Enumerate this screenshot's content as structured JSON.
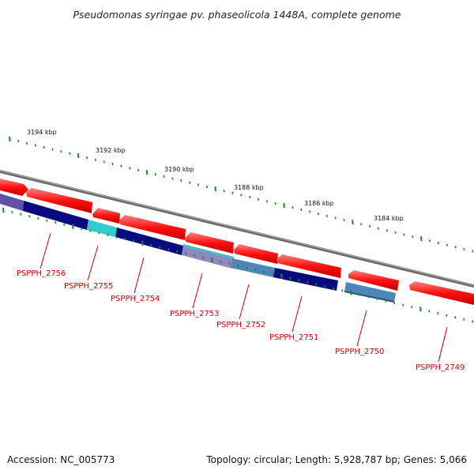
{
  "title": "Pseudomonas syringae pv. phaseolicola 1448A, complete genome",
  "footer": {
    "accession": "Accession: NC_005773",
    "summary": "Topology: circular; Length: 5,928,787 bp; Genes: 5,066"
  },
  "scale_labels": [
    "3194 kbp",
    "3192 kbp",
    "3190 kbp",
    "3188 kbp",
    "3186 kbp",
    "3184 kbp"
  ],
  "gene_labels": [
    "PSPPH_2756",
    "PSPPH_2755",
    "PSPPH_2754",
    "PSPPH_2753",
    "PSPPH_2752",
    "PSPPH_2751",
    "PSPPH_2750",
    "PSPPH_2749"
  ],
  "colors": {
    "forward_gene": "#ff1a1a",
    "dark_blue": "#0a0a80",
    "cyan": "#33cccc",
    "steel_blue": "#4f86b8",
    "lavender": "#8a80b8",
    "backbone": "#808080",
    "tick_green": "#1a8a1a",
    "label_red": "#cc0000"
  }
}
